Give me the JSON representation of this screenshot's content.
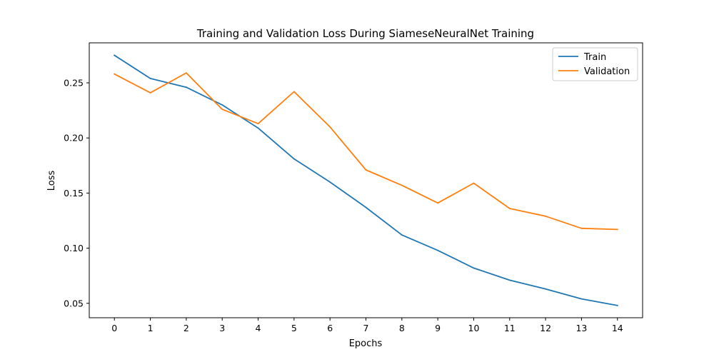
{
  "chart_data": {
    "type": "line",
    "title": "Training and Validation Loss During SiameseNeuralNet Training",
    "xlabel": "Epochs",
    "ylabel": "Loss",
    "x": [
      0,
      1,
      2,
      3,
      4,
      5,
      6,
      7,
      8,
      9,
      10,
      11,
      12,
      13,
      14
    ],
    "xticks": [
      "0",
      "1",
      "2",
      "3",
      "4",
      "5",
      "6",
      "7",
      "8",
      "9",
      "10",
      "11",
      "12",
      "13",
      "14"
    ],
    "yticks": [
      "0.05",
      "0.10",
      "0.15",
      "0.20",
      "0.25"
    ],
    "ytick_values": [
      0.05,
      0.1,
      0.15,
      0.2,
      0.25
    ],
    "xlim": [
      -0.7,
      14.7
    ],
    "ylim": [
      0.0369,
      0.2863
    ],
    "grid": false,
    "legend_position": "top-right",
    "series": [
      {
        "name": "Train",
        "color": "#1f77b4",
        "values": [
          0.275,
          0.254,
          0.246,
          0.23,
          0.209,
          0.181,
          0.16,
          0.137,
          0.112,
          0.098,
          0.082,
          0.071,
          0.063,
          0.054,
          0.048
        ]
      },
      {
        "name": "Validation",
        "color": "#ff7f0e",
        "values": [
          0.258,
          0.241,
          0.259,
          0.226,
          0.213,
          0.242,
          0.21,
          0.171,
          0.157,
          0.141,
          0.159,
          0.136,
          0.129,
          0.118,
          0.117
        ]
      }
    ]
  }
}
